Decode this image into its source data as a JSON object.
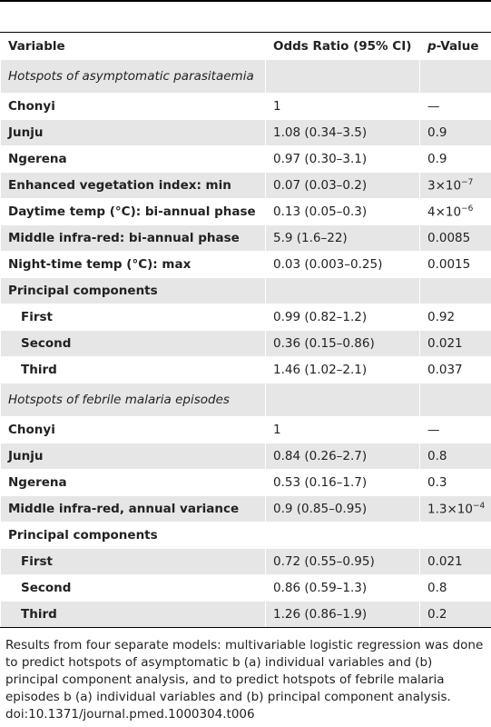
{
  "table": {
    "header": {
      "variable": "Variable",
      "odds_ratio": "Odds Ratio (95% CI)",
      "p_value": {
        "italic": "p",
        "rest": "-Value"
      }
    },
    "rows": [
      {
        "section": "Hotspots of asymptomatic parasitaemia"
      },
      {
        "variable": "Chonyi",
        "odds_ratio": "1",
        "p_value": "—"
      },
      {
        "variable": "Junju",
        "odds_ratio": "1.08 (0.34–3.5)",
        "p_value": "0.9"
      },
      {
        "variable": "Ngerena",
        "odds_ratio": "0.97 (0.30–3.1)",
        "p_value": "0.9"
      },
      {
        "variable": "Enhanced vegetation index: min",
        "odds_ratio": "0.07 (0.03–0.2)",
        "p_value": {
          "base": "3×10",
          "sup": "−7"
        }
      },
      {
        "variable": "Daytime temp (°C): bi-annual phase",
        "odds_ratio": "0.13 (0.05–0.3)",
        "p_value": {
          "base": "4×10",
          "sup": "−6"
        }
      },
      {
        "variable": "Middle infra-red: bi-annual phase",
        "odds_ratio": "5.9 (1.6–22)",
        "p_value": "0.0085"
      },
      {
        "variable": "Night-time temp (°C): max",
        "odds_ratio": "0.03 (0.003–0.25)",
        "p_value": "0.0015"
      },
      {
        "variable": "Principal components"
      },
      {
        "variable": "First",
        "odds_ratio": "0.99 (0.82–1.2)",
        "p_value": "0.92",
        "indent": true
      },
      {
        "variable": "Second",
        "odds_ratio": "0.36 (0.15–0.86)",
        "p_value": "0.021",
        "indent": true
      },
      {
        "variable": "Third",
        "odds_ratio": "1.46 (1.02–2.1)",
        "p_value": "0.037",
        "indent": true
      },
      {
        "section": "Hotspots of febrile malaria episodes"
      },
      {
        "variable": "Chonyi",
        "odds_ratio": "1",
        "p_value": "—"
      },
      {
        "variable": "Junju",
        "odds_ratio": "0.84 (0.26–2.7)",
        "p_value": "0.8"
      },
      {
        "variable": "Ngerena",
        "odds_ratio": "0.53 (0.16–1.7)",
        "p_value": "0.3"
      },
      {
        "variable": "Middle infra-red, annual variance",
        "odds_ratio": "0.9 (0.85–0.95)",
        "p_value": {
          "base": "1.3×10",
          "sup": "−4"
        }
      },
      {
        "variable": "Principal components"
      },
      {
        "variable": "First",
        "odds_ratio": "0.72 (0.55–0.95)",
        "p_value": "0.021",
        "indent": true
      },
      {
        "variable": "Second",
        "odds_ratio": "0.86 (0.59–1.3)",
        "p_value": "0.8",
        "indent": true
      },
      {
        "variable": "Third",
        "odds_ratio": "1.26 (0.86–1.9)",
        "p_value": "0.2",
        "indent": true
      }
    ]
  },
  "footer": {
    "note": "Results from four separate models: multivariable logistic regression was done to predict hotspots of asymptomatic b (a) individual variables and (b) principal component analysis, and to predict hotspots of febrile malaria episodes b (a) individual variables and (b) principal component analysis.",
    "doi": "doi:10.1371/journal.pmed.1000304.t006"
  }
}
